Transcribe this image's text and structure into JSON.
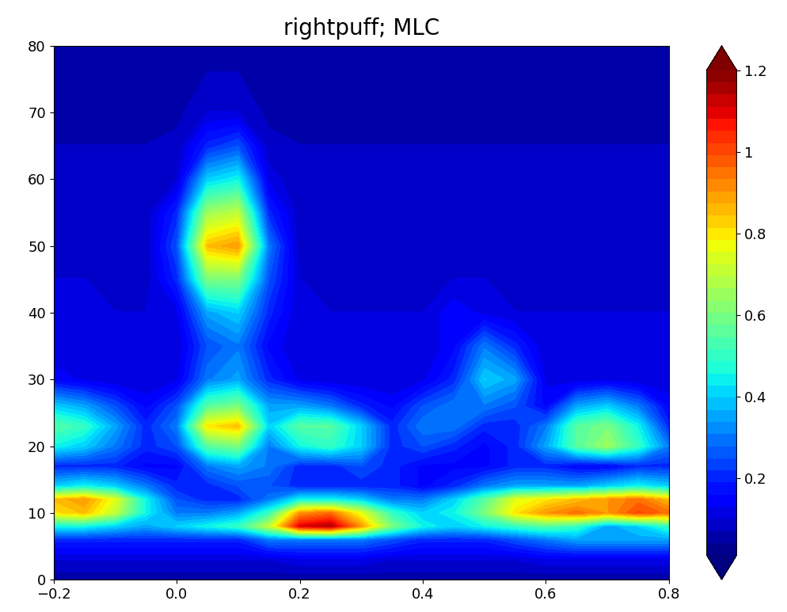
{
  "chart_data": {
    "type": "heatmap",
    "title": "rightpuff; MLC",
    "x": [
      -0.2,
      -0.15,
      -0.1,
      -0.05,
      0.0,
      0.05,
      0.1,
      0.15,
      0.2,
      0.25,
      0.3,
      0.35,
      0.4,
      0.45,
      0.5,
      0.55,
      0.6,
      0.65,
      0.7,
      0.75,
      0.8
    ],
    "y": [
      0,
      3,
      6,
      8,
      10,
      12,
      14,
      17,
      20,
      23,
      26,
      30,
      35,
      40,
      45,
      50,
      55,
      60,
      65,
      70,
      80
    ],
    "values": [
      [
        0.05,
        0.05,
        0.05,
        0.05,
        0.05,
        0.05,
        0.05,
        0.05,
        0.05,
        0.05,
        0.05,
        0.05,
        0.05,
        0.05,
        0.05,
        0.05,
        0.05,
        0.05,
        0.05,
        0.05,
        0.05
      ],
      [
        0.1,
        0.1,
        0.1,
        0.1,
        0.1,
        0.1,
        0.1,
        0.1,
        0.12,
        0.12,
        0.12,
        0.1,
        0.1,
        0.1,
        0.1,
        0.1,
        0.12,
        0.12,
        0.12,
        0.12,
        0.12
      ],
      [
        0.2,
        0.2,
        0.2,
        0.2,
        0.2,
        0.2,
        0.2,
        0.3,
        0.3,
        0.3,
        0.3,
        0.25,
        0.2,
        0.2,
        0.2,
        0.25,
        0.3,
        0.35,
        0.35,
        0.35,
        0.35
      ],
      [
        0.45,
        0.45,
        0.4,
        0.35,
        0.4,
        0.45,
        0.5,
        0.7,
        1.1,
        1.15,
        0.9,
        0.6,
        0.45,
        0.4,
        0.45,
        0.5,
        0.55,
        0.5,
        0.35,
        0.4,
        0.5
      ],
      [
        0.8,
        0.85,
        0.7,
        0.45,
        0.3,
        0.3,
        0.35,
        0.5,
        0.9,
        0.95,
        0.75,
        0.5,
        0.4,
        0.45,
        0.6,
        0.8,
        0.9,
        0.95,
        0.9,
        1.0,
        0.95
      ],
      [
        0.85,
        0.9,
        0.75,
        0.45,
        0.25,
        0.2,
        0.2,
        0.3,
        0.45,
        0.45,
        0.4,
        0.3,
        0.3,
        0.4,
        0.55,
        0.75,
        0.8,
        0.85,
        0.9,
        0.95,
        0.85
      ],
      [
        0.4,
        0.45,
        0.4,
        0.3,
        0.2,
        0.2,
        0.25,
        0.25,
        0.2,
        0.2,
        0.2,
        0.2,
        0.15,
        0.2,
        0.3,
        0.35,
        0.35,
        0.35,
        0.4,
        0.45,
        0.4
      ],
      [
        0.2,
        0.2,
        0.2,
        0.15,
        0.15,
        0.3,
        0.35,
        0.3,
        0.2,
        0.2,
        0.25,
        0.2,
        0.15,
        0.15,
        0.15,
        0.2,
        0.2,
        0.15,
        0.15,
        0.2,
        0.2
      ],
      [
        0.45,
        0.4,
        0.3,
        0.2,
        0.25,
        0.55,
        0.6,
        0.3,
        0.45,
        0.5,
        0.4,
        0.2,
        0.25,
        0.2,
        0.15,
        0.2,
        0.35,
        0.55,
        0.65,
        0.5,
        0.3
      ],
      [
        0.55,
        0.5,
        0.35,
        0.2,
        0.3,
        0.8,
        0.85,
        0.4,
        0.55,
        0.55,
        0.4,
        0.2,
        0.3,
        0.3,
        0.2,
        0.2,
        0.3,
        0.55,
        0.6,
        0.45,
        0.2
      ],
      [
        0.4,
        0.35,
        0.25,
        0.15,
        0.25,
        0.55,
        0.6,
        0.35,
        0.35,
        0.3,
        0.2,
        0.15,
        0.25,
        0.3,
        0.3,
        0.25,
        0.15,
        0.35,
        0.4,
        0.3,
        0.15
      ],
      [
        0.15,
        0.12,
        0.1,
        0.1,
        0.12,
        0.3,
        0.35,
        0.2,
        0.12,
        0.1,
        0.1,
        0.1,
        0.12,
        0.2,
        0.4,
        0.35,
        0.12,
        0.1,
        0.12,
        0.1,
        0.1
      ],
      [
        0.1,
        0.1,
        0.1,
        0.1,
        0.1,
        0.25,
        0.3,
        0.15,
        0.1,
        0.1,
        0.1,
        0.1,
        0.1,
        0.15,
        0.3,
        0.2,
        0.1,
        0.1,
        0.1,
        0.1,
        0.1
      ],
      [
        0.1,
        0.1,
        0.1,
        0.1,
        0.12,
        0.35,
        0.4,
        0.2,
        0.1,
        0.1,
        0.1,
        0.1,
        0.1,
        0.15,
        0.12,
        0.1,
        0.1,
        0.1,
        0.1,
        0.1,
        0.1
      ],
      [
        0.1,
        0.1,
        0.08,
        0.08,
        0.2,
        0.6,
        0.6,
        0.25,
        0.1,
        0.08,
        0.08,
        0.08,
        0.08,
        0.1,
        0.1,
        0.08,
        0.08,
        0.08,
        0.08,
        0.08,
        0.08
      ],
      [
        0.08,
        0.08,
        0.08,
        0.08,
        0.25,
        0.85,
        0.9,
        0.3,
        0.08,
        0.08,
        0.08,
        0.08,
        0.08,
        0.08,
        0.08,
        0.08,
        0.08,
        0.08,
        0.08,
        0.08,
        0.08
      ],
      [
        0.08,
        0.08,
        0.08,
        0.08,
        0.2,
        0.65,
        0.7,
        0.2,
        0.08,
        0.08,
        0.08,
        0.08,
        0.08,
        0.08,
        0.08,
        0.08,
        0.08,
        0.08,
        0.08,
        0.08,
        0.08
      ],
      [
        0.07,
        0.07,
        0.07,
        0.07,
        0.1,
        0.4,
        0.45,
        0.12,
        0.07,
        0.07,
        0.07,
        0.07,
        0.07,
        0.07,
        0.07,
        0.07,
        0.07,
        0.07,
        0.07,
        0.07,
        0.07
      ],
      [
        0.07,
        0.07,
        0.07,
        0.07,
        0.08,
        0.2,
        0.25,
        0.08,
        0.07,
        0.07,
        0.07,
        0.07,
        0.07,
        0.07,
        0.07,
        0.07,
        0.07,
        0.07,
        0.07,
        0.07,
        0.07
      ],
      [
        0.06,
        0.06,
        0.06,
        0.06,
        0.06,
        0.1,
        0.1,
        0.06,
        0.06,
        0.06,
        0.06,
        0.06,
        0.06,
        0.06,
        0.06,
        0.06,
        0.06,
        0.06,
        0.06,
        0.06,
        0.06
      ],
      [
        0.05,
        0.05,
        0.05,
        0.05,
        0.05,
        0.05,
        0.05,
        0.05,
        0.05,
        0.05,
        0.05,
        0.05,
        0.05,
        0.05,
        0.05,
        0.05,
        0.05,
        0.05,
        0.05,
        0.05,
        0.05
      ]
    ],
    "xlim": [
      -0.2,
      0.8
    ],
    "xticks": [
      {
        "value": -0.2,
        "label": "−0.2"
      },
      0.0,
      0.2,
      0.4,
      0.6,
      0.8
    ],
    "ylim": [
      0,
      80
    ],
    "yticks": [
      0,
      10,
      20,
      30,
      40,
      50,
      60,
      70,
      80
    ],
    "colorbar_range": [
      0.01,
      1.2
    ],
    "colorbar_ticks": [
      0.2,
      0.4,
      0.6,
      0.8,
      1,
      1.2
    ]
  }
}
